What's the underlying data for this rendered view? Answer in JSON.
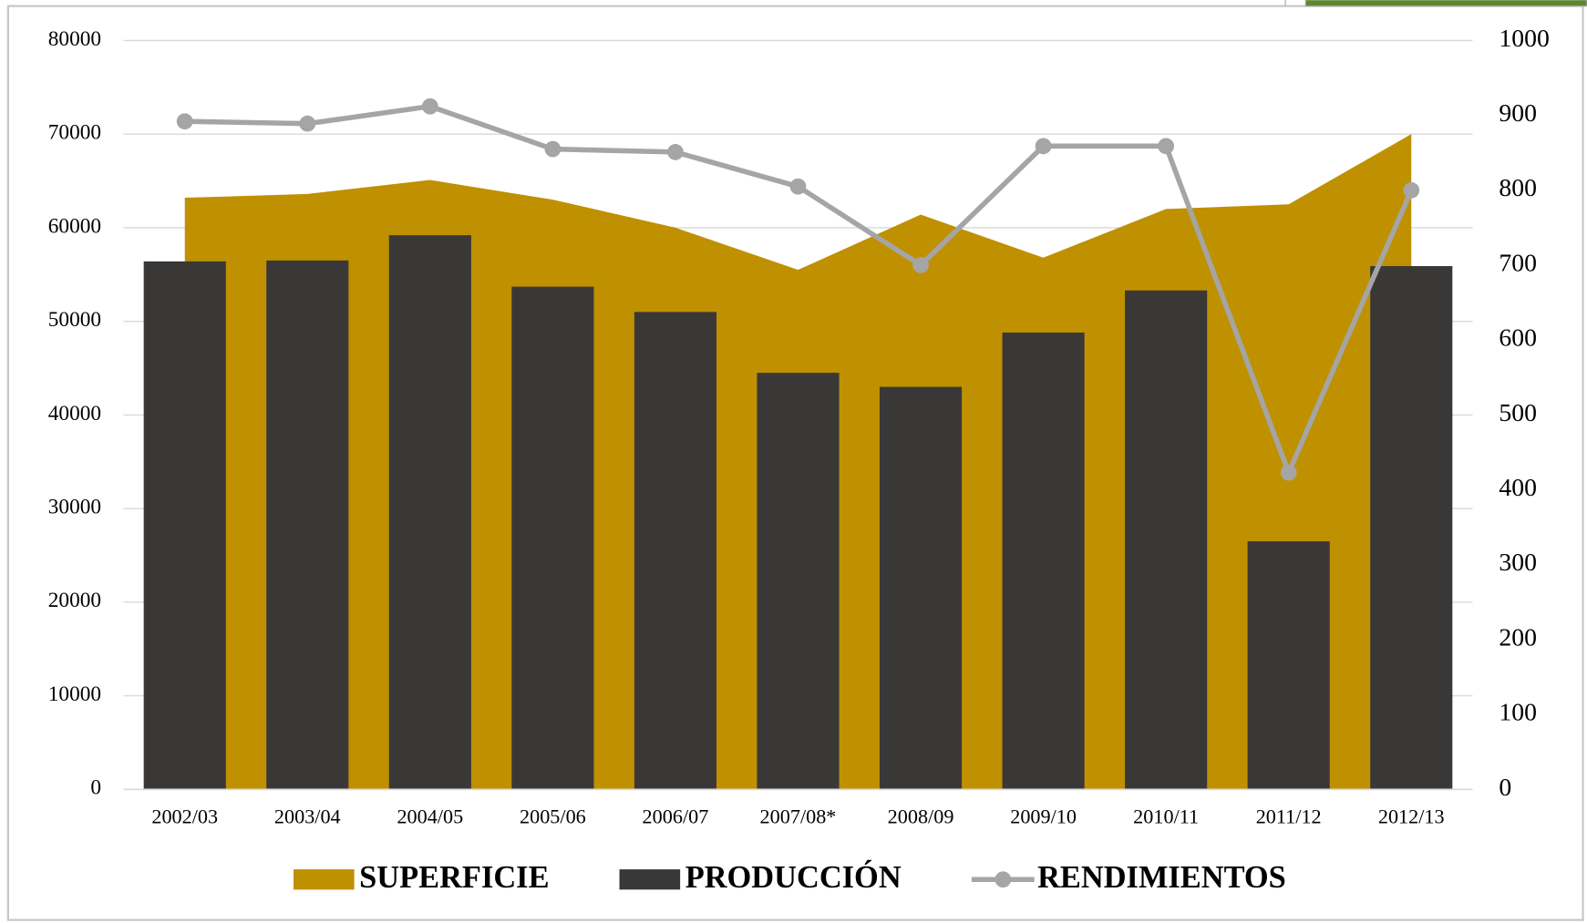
{
  "chart_data": {
    "type": "combo",
    "categories": [
      "2002/03",
      "2003/04",
      "2004/05",
      "2005/06",
      "2006/07",
      "2007/08*",
      "2008/09",
      "2009/10",
      "2010/11",
      "2011/12",
      "2012/13"
    ],
    "series": [
      {
        "name": "SUPERFICIE",
        "type": "area",
        "color": "#bf9000",
        "values": [
          63200,
          63600,
          65100,
          63000,
          60000,
          55500,
          61400,
          56800,
          62000,
          62500,
          70000
        ]
      },
      {
        "name": "PRODUCCIÓN",
        "type": "bar",
        "color": "#3a3837",
        "values": [
          56400,
          56500,
          59200,
          53700,
          51000,
          44500,
          43000,
          48800,
          53300,
          26500,
          55900
        ]
      },
      {
        "name": "RENDIMIENTOS",
        "type": "line",
        "axis": "y2",
        "color": "#a5a5a5",
        "values": [
          892,
          889,
          912,
          855,
          851,
          805,
          700,
          859,
          859,
          423,
          800
        ]
      }
    ],
    "ylim": [
      0,
      80000
    ],
    "yticks": [
      0,
      10000,
      20000,
      30000,
      40000,
      50000,
      60000,
      70000,
      80000
    ],
    "y2lim": [
      0,
      1000
    ],
    "y2ticks": [
      0,
      100,
      200,
      300,
      400,
      500,
      600,
      700,
      800,
      900,
      1000
    ],
    "grid": true,
    "legend": "bottom"
  }
}
